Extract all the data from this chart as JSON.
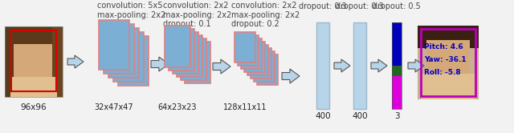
{
  "bg_color": "#f2f2f2",
  "input_label": "96x96",
  "layer1_label": "32x47x47",
  "layer2_label": "64x23x23",
  "layer3_label": "128x11x11",
  "fc1_label": "400",
  "fc2_label": "400",
  "out_label": "3",
  "ann1": "convolution: 5x5\nmax-pooling: 2x2",
  "ann2": "convolution: 2x2\nmax-pooling: 2x2\ndropout: 0.1",
  "ann3": "convolution: 2x2\nmax-pooling: 2x2\ndropout: 0.2",
  "ann4": "dropout: 0.3",
  "ann5": "dropout: 0.3",
  "ann6": "dropout: 0.5",
  "pitch_text": "Pitch: 4.6",
  "yaw_text": "Yaw: -36.1",
  "roll_text": "Roll: -5.8",
  "face_box_color": "#dd0000",
  "output_box_color": "#bb00bb",
  "layer_face_color": "#7bafd4",
  "layer_border_color": "#e08080",
  "fc_color": "#b8d4e8",
  "out_blue": "#0000bb",
  "out_green": "#226622",
  "out_magenta": "#dd00dd",
  "text_color_ann": "#444444",
  "text_color_label": "#222222",
  "text_color_pitch": "#0000cc",
  "arrow_fill": "#b8d4e8",
  "arrow_edge": "#555555"
}
